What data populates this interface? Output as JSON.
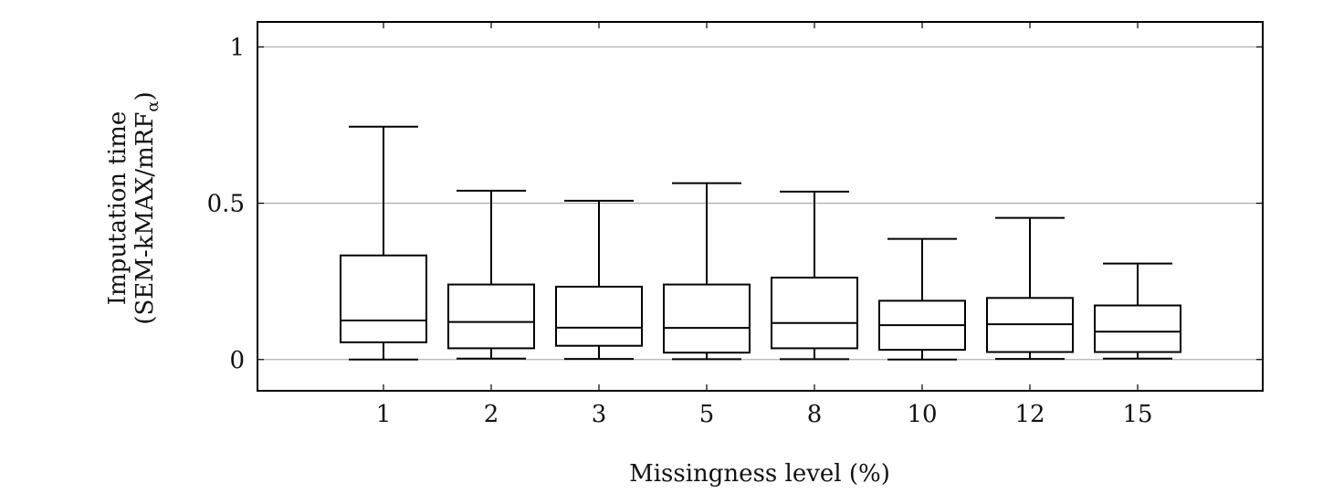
{
  "chart_data": {
    "type": "boxplot",
    "xlabel": "Missingness level (%)",
    "ylabel_line1": "Imputation time",
    "ylabel_line2_main": "(SEM-kMAX/mRF",
    "ylabel_line2_sub": "α",
    "ylabel_line2_end": ")",
    "ylim": [
      -0.1,
      1.08
    ],
    "yticks": [
      0,
      0.5,
      1
    ],
    "ytick_labels": [
      "0",
      "0.5",
      "1"
    ],
    "grid": "horizontal",
    "categories": [
      "1",
      "2",
      "3",
      "5",
      "8",
      "10",
      "12",
      "15"
    ],
    "boxes": [
      {
        "min": 0.0,
        "q1": 0.055,
        "median": 0.125,
        "q3": 0.333,
        "max": 0.745
      },
      {
        "min": 0.003,
        "q1": 0.036,
        "median": 0.12,
        "q3": 0.24,
        "max": 0.54
      },
      {
        "min": 0.002,
        "q1": 0.044,
        "median": 0.102,
        "q3": 0.233,
        "max": 0.508
      },
      {
        "min": 0.001,
        "q1": 0.022,
        "median": 0.101,
        "q3": 0.24,
        "max": 0.564
      },
      {
        "min": 0.001,
        "q1": 0.036,
        "median": 0.117,
        "q3": 0.262,
        "max": 0.537
      },
      {
        "min": 0.0,
        "q1": 0.031,
        "median": 0.11,
        "q3": 0.188,
        "max": 0.386
      },
      {
        "min": 0.002,
        "q1": 0.024,
        "median": 0.113,
        "q3": 0.197,
        "max": 0.453
      },
      {
        "min": 0.003,
        "q1": 0.024,
        "median": 0.089,
        "q3": 0.173,
        "max": 0.307
      }
    ]
  }
}
